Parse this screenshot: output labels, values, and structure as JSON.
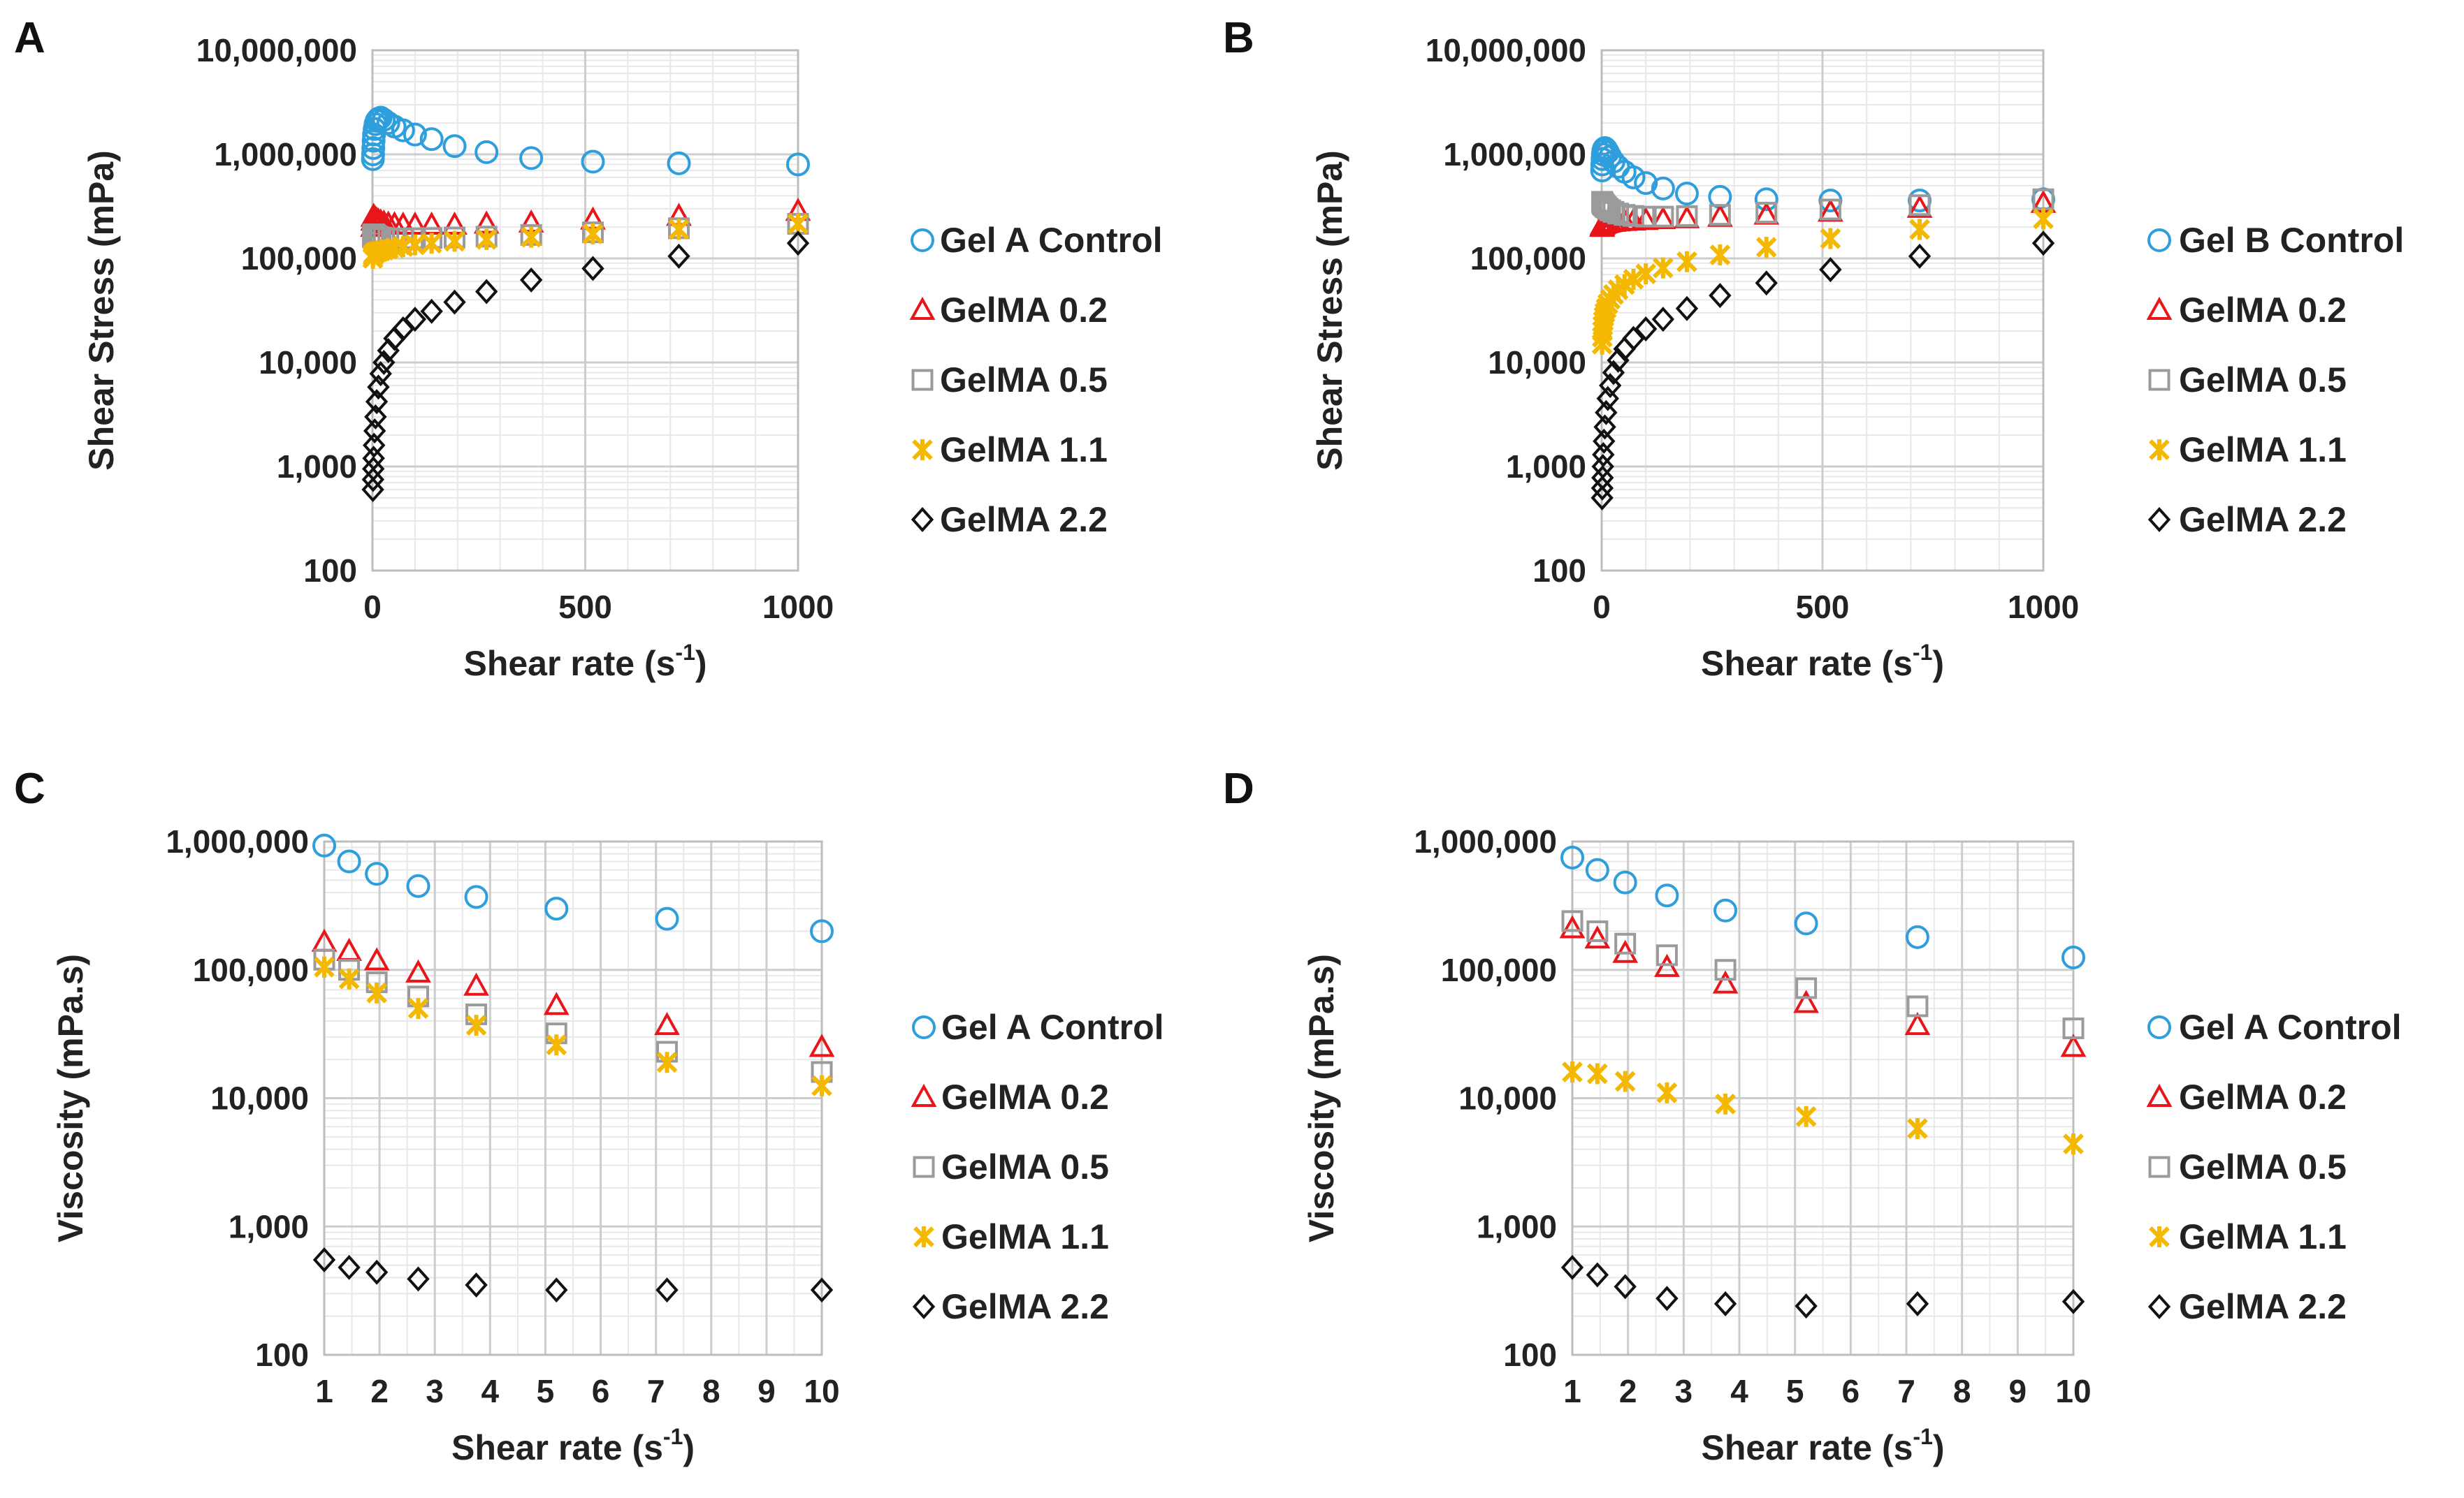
{
  "series_styles": [
    {
      "key": "control",
      "color": "#2e9fdc",
      "marker": "circle"
    },
    {
      "key": "g02",
      "color": "#e8151b",
      "marker": "triangle"
    },
    {
      "key": "g05",
      "color": "#9b9b9b",
      "marker": "square"
    },
    {
      "key": "g11",
      "color": "#f5b800",
      "marker": "star"
    },
    {
      "key": "g22",
      "color": "#111111",
      "marker": "diamond"
    }
  ],
  "chart_data": [
    {
      "panel": "A",
      "type": "scatter",
      "xlabel": "Shear rate (s",
      "xlabel_sup": "-1",
      "xlabel_end": ")",
      "ylabel": "Shear Stress (mPa)",
      "yscale": "log",
      "xlim": [
        0,
        1000
      ],
      "ylim": [
        100,
        10000000
      ],
      "x_ticks": [
        "0",
        "500",
        "1000"
      ],
      "y_ticks": [
        "100",
        "1,000",
        "10,000",
        "100,000",
        "1,000,000",
        "10,000,000"
      ],
      "legend_position": "right",
      "x": [
        1,
        1.4,
        2,
        2.7,
        3.7,
        5.2,
        7.2,
        10,
        13.9,
        19.3,
        26.8,
        37.3,
        51.8,
        72,
        100,
        139,
        193,
        268,
        373,
        518,
        720,
        1000
      ],
      "series": [
        {
          "name": "Gel A Control",
          "values": [
            900000,
            1000000,
            1150000,
            1350000,
            1550000,
            1750000,
            1950000,
            2100000,
            2200000,
            2250000,
            2150000,
            2000000,
            1850000,
            1700000,
            1550000,
            1400000,
            1200000,
            1050000,
            920000,
            850000,
            820000,
            800000
          ]
        },
        {
          "name": "GelMA 0.2",
          "values": [
            200000,
            230000,
            250000,
            255000,
            250000,
            245000,
            240000,
            235000,
            230000,
            225000,
            220000,
            215000,
            212000,
            210000,
            210000,
            210000,
            210000,
            215000,
            220000,
            235000,
            255000,
            285000
          ]
        },
        {
          "name": "GelMA 0.5",
          "values": [
            160000,
            165000,
            168000,
            170000,
            170000,
            168000,
            165000,
            162000,
            160000,
            158000,
            157000,
            156000,
            155000,
            155000,
            156000,
            157000,
            159000,
            162000,
            168000,
            178000,
            195000,
            215000
          ]
        },
        {
          "name": "GelMA 1.1",
          "values": [
            100000,
            105000,
            108000,
            110000,
            112000,
            113000,
            114000,
            115000,
            116000,
            118000,
            120000,
            123000,
            126000,
            130000,
            135000,
            140000,
            146000,
            152000,
            160000,
            172000,
            190000,
            215000
          ]
        },
        {
          "name": "GelMA 2.2",
          "values": [
            600,
            750,
            950,
            1200,
            1600,
            2200,
            3000,
            4200,
            5800,
            7800,
            10000,
            13000,
            17000,
            21000,
            26000,
            31000,
            38000,
            48000,
            62000,
            80000,
            105000,
            140000
          ]
        }
      ]
    },
    {
      "panel": "B",
      "type": "scatter",
      "xlabel": "Shear rate (s",
      "xlabel_sup": "-1",
      "xlabel_end": ")",
      "ylabel": "Shear Stress (mPa)",
      "yscale": "log",
      "xlim": [
        0,
        1000
      ],
      "ylim": [
        100,
        10000000
      ],
      "x_ticks": [
        "0",
        "500",
        "1000"
      ],
      "y_ticks": [
        "100",
        "1,000",
        "10,000",
        "100,000",
        "1,000,000",
        "10,000,000"
      ],
      "legend_position": "right",
      "x": [
        1,
        1.4,
        2,
        2.7,
        3.7,
        5.2,
        7.2,
        10,
        13.9,
        19.3,
        26.8,
        37.3,
        51.8,
        72,
        100,
        139,
        193,
        268,
        373,
        518,
        720,
        1000
      ],
      "series": [
        {
          "name": "Gel B Control",
          "values": [
            700000,
            800000,
            900000,
            1000000,
            1080000,
            1130000,
            1150000,
            1120000,
            1050000,
            950000,
            850000,
            760000,
            680000,
            600000,
            530000,
            470000,
            420000,
            390000,
            370000,
            360000,
            360000,
            370000
          ]
        },
        {
          "name": "GelMA 0.2",
          "values": [
            200000,
            205000,
            210000,
            212000,
            214000,
            215000,
            216000,
            218000,
            220000,
            222000,
            224000,
            226000,
            228000,
            230000,
            233000,
            237000,
            242000,
            250000,
            262000,
            280000,
            305000,
            340000
          ]
        },
        {
          "name": "GelMA 0.5",
          "values": [
            350000,
            345000,
            340000,
            335000,
            330000,
            325000,
            318000,
            310000,
            300000,
            290000,
            280000,
            270000,
            262000,
            256000,
            252000,
            252000,
            255000,
            262000,
            275000,
            295000,
            325000,
            370000
          ]
        },
        {
          "name": "GelMA 1.1",
          "values": [
            15000,
            17500,
            20000,
            22500,
            25000,
            27500,
            30000,
            33000,
            36500,
            40500,
            45000,
            50000,
            56000,
            63000,
            71000,
            81000,
            93000,
            108000,
            128000,
            155000,
            190000,
            240000
          ]
        },
        {
          "name": "GelMA 2.2",
          "values": [
            500,
            620,
            780,
            1000,
            1300,
            1750,
            2400,
            3300,
            4500,
            6000,
            8000,
            10500,
            13500,
            17000,
            21000,
            26000,
            33000,
            44000,
            58000,
            78000,
            105000,
            140000
          ]
        }
      ]
    },
    {
      "panel": "C",
      "type": "scatter",
      "xlabel": "Shear rate (s",
      "xlabel_sup": "-1",
      "xlabel_end": ")",
      "ylabel": "Viscosity (mPa.s)",
      "yscale": "log",
      "xlim": [
        1,
        10
      ],
      "ylim": [
        100,
        1000000
      ],
      "x_ticks": [
        "1",
        "2",
        "3",
        "4",
        "5",
        "6",
        "7",
        "8",
        "9",
        "10"
      ],
      "y_ticks": [
        "100",
        "1,000",
        "10,000",
        "100,000",
        "1,000,000"
      ],
      "legend_position": "right",
      "x": [
        1,
        1.45,
        1.95,
        2.7,
        3.75,
        5.2,
        7.2,
        10
      ],
      "series": [
        {
          "name": "Gel A Control",
          "values": [
            930000,
            700000,
            560000,
            450000,
            370000,
            300000,
            250000,
            200000
          ]
        },
        {
          "name": "GelMA 0.2",
          "values": [
            165000,
            140000,
            118000,
            95000,
            75000,
            53000,
            37000,
            25000
          ]
        },
        {
          "name": "GelMA 0.5",
          "values": [
            120000,
            100000,
            80000,
            62000,
            45000,
            32000,
            23000,
            16000
          ]
        },
        {
          "name": "GelMA 1.1",
          "values": [
            105000,
            85000,
            66000,
            50000,
            37000,
            26000,
            19000,
            12500
          ]
        },
        {
          "name": "GelMA 2.2",
          "values": [
            550,
            480,
            440,
            390,
            350,
            320,
            320,
            320
          ]
        }
      ]
    },
    {
      "panel": "D",
      "type": "scatter",
      "xlabel": "Shear rate (s",
      "xlabel_sup": "-1",
      "xlabel_end": ")",
      "ylabel": "Viscosity (mPa.s)",
      "yscale": "log",
      "xlim": [
        1,
        10
      ],
      "ylim": [
        100,
        1000000
      ],
      "x_ticks": [
        "1",
        "2",
        "3",
        "4",
        "5",
        "6",
        "7",
        "8",
        "9",
        "10"
      ],
      "y_ticks": [
        "100",
        "1,000",
        "10,000",
        "100,000",
        "1,000,000"
      ],
      "legend_position": "right",
      "x": [
        1,
        1.45,
        1.95,
        2.7,
        3.75,
        5.2,
        7.2,
        10
      ],
      "series": [
        {
          "name": "Gel A Control",
          "values": [
            750000,
            600000,
            480000,
            380000,
            290000,
            230000,
            180000,
            125000
          ]
        },
        {
          "name": "GelMA 0.2",
          "values": [
            210000,
            175000,
            135000,
            105000,
            78000,
            55000,
            37000,
            25000
          ]
        },
        {
          "name": "GelMA 0.5",
          "values": [
            240000,
            200000,
            160000,
            130000,
            100000,
            72000,
            52000,
            35000
          ]
        },
        {
          "name": "GelMA 1.1",
          "values": [
            16000,
            15500,
            13500,
            11000,
            9000,
            7200,
            5800,
            4400
          ]
        },
        {
          "name": "GelMA 2.2",
          "values": [
            480,
            420,
            340,
            275,
            250,
            240,
            250,
            260
          ]
        }
      ]
    }
  ]
}
